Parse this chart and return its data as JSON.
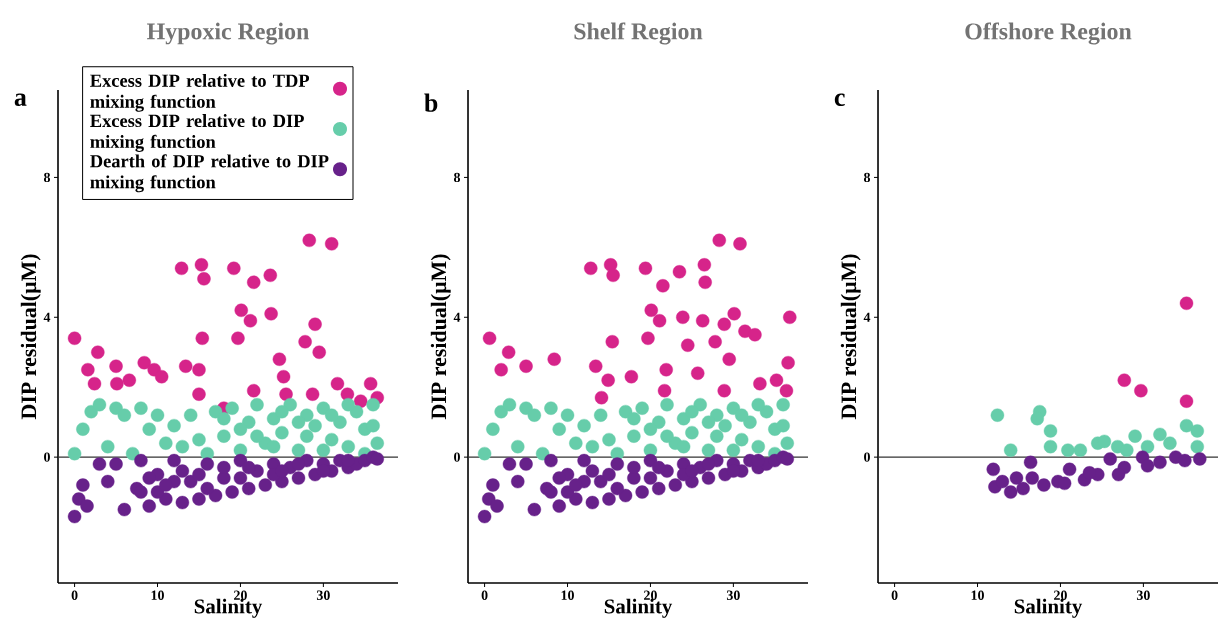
{
  "chart_data": [
    {
      "type": "scatter",
      "title": "Hypoxic Region",
      "xlabel": "Salinity",
      "ylabel": "DIP residual(μM)",
      "annotations": [
        "a"
      ],
      "xlim": [
        -2,
        39
      ],
      "ylim": [
        -3.6,
        10.5
      ],
      "xticks": [
        0,
        10,
        20,
        30
      ],
      "yticks": [
        0,
        4,
        8
      ],
      "marker": "circle",
      "legend": "top left",
      "ref_lines": [
        {
          "axis": "y",
          "value": 0,
          "color": "#333333"
        }
      ],
      "series": [
        {
          "name": "Excess DIP relative to TDP mixing function",
          "color": "#d6248a",
          "x": [
            0,
            1.6,
            2.8,
            2.4,
            5,
            5.1,
            6.6,
            8.4,
            9.6,
            10.5,
            12.9,
            15.3,
            15.6,
            13.4,
            15.4,
            15,
            19.2,
            21.6,
            23.6,
            20.1,
            21.2,
            19.7,
            23.7,
            24.7,
            25.2,
            28.3,
            31,
            29,
            29.5,
            27.8,
            25.5,
            31.7,
            35.7,
            36.5,
            32.9,
            21.6,
            18,
            15,
            28.7,
            34.5
          ],
          "values": [
            3.4,
            2.5,
            3.0,
            2.1,
            2.6,
            2.1,
            2.2,
            2.7,
            2.5,
            2.3,
            5.4,
            5.5,
            5.1,
            2.6,
            3.4,
            2.5,
            5.4,
            5.0,
            5.2,
            4.2,
            3.9,
            3.4,
            4.1,
            2.8,
            2.3,
            6.2,
            6.1,
            3.8,
            3.0,
            3.3,
            1.8,
            2.1,
            2.1,
            1.7,
            1.8,
            1.9,
            1.4,
            1.8,
            1.8,
            1.6
          ]
        },
        {
          "name": "Excess DIP relative to DIP mixing function",
          "color": "#66cdaa",
          "x": [
            0,
            1,
            2,
            3,
            4,
            5,
            6,
            7,
            8,
            9,
            10,
            11,
            12,
            13,
            14,
            15,
            16,
            17,
            18,
            19,
            20,
            21,
            22,
            23,
            24,
            25,
            26,
            27,
            28,
            29,
            30,
            31,
            32,
            33,
            34,
            35,
            36,
            36.5,
            20,
            25,
            30,
            33,
            18,
            28,
            35,
            22,
            27,
            31,
            36,
            24
          ],
          "values": [
            0.1,
            0.8,
            1.3,
            1.5,
            0.3,
            1.4,
            1.2,
            0.1,
            1.4,
            0.8,
            1.2,
            0.4,
            0.9,
            0.3,
            1.2,
            0.5,
            0.1,
            1.3,
            0.6,
            1.4,
            0.2,
            1.0,
            1.5,
            0.4,
            1.1,
            0.7,
            1.5,
            0.2,
            1.2,
            0.9,
            1.4,
            0.5,
            1.0,
            0.3,
            1.3,
            0.8,
            1.5,
            0.4,
            0.8,
            1.3,
            0.2,
            1.5,
            1.1,
            0.6,
            0.1,
            0.6,
            1.0,
            1.2,
            0.9,
            0.3
          ]
        },
        {
          "name": "Dearth of DIP relative to DIP mixing function",
          "color": "#67218a",
          "x": [
            0,
            0.5,
            1,
            1.5,
            3,
            4,
            5,
            6,
            7.5,
            8,
            8,
            9,
            10,
            11,
            12,
            13,
            14,
            15,
            16,
            17,
            18,
            19,
            20,
            21,
            22,
            23,
            24,
            25,
            26,
            27,
            28,
            29,
            30,
            31,
            32,
            33,
            34,
            35,
            36,
            12,
            18,
            24,
            30,
            15,
            21,
            27,
            10,
            13,
            9,
            11,
            16,
            20,
            25,
            33,
            36.5
          ],
          "values": [
            -1.7,
            -1.2,
            -0.8,
            -1.4,
            -0.2,
            -0.7,
            -0.2,
            -1.5,
            -0.9,
            -0.1,
            -1.0,
            -1.4,
            -0.5,
            -1.2,
            -0.1,
            -1.3,
            -0.7,
            -1.2,
            -0.2,
            -1.1,
            -0.6,
            -1.0,
            -0.1,
            -0.9,
            -0.4,
            -0.8,
            -0.2,
            -0.7,
            -0.3,
            -0.6,
            -0.1,
            -0.5,
            -0.2,
            -0.4,
            -0.1,
            -0.3,
            -0.2,
            -0.1,
            0,
            -0.7,
            -0.3,
            -0.5,
            -0.4,
            -0.5,
            -0.3,
            -0.2,
            -1.0,
            -0.4,
            -0.6,
            -0.8,
            -0.9,
            -0.6,
            -0.4,
            -0.1,
            -0.05
          ]
        }
      ]
    },
    {
      "type": "scatter",
      "title": "Shelf Region",
      "xlabel": "Salinity",
      "ylabel": "DIP residual(μM)",
      "annotations": [
        "b"
      ],
      "xlim": [
        -2,
        39
      ],
      "ylim": [
        -3.6,
        10.5
      ],
      "xticks": [
        0,
        10,
        20,
        30
      ],
      "yticks": [
        0,
        4,
        8
      ],
      "marker": "circle",
      "ref_lines": [
        {
          "axis": "y",
          "value": 0,
          "color": "#333333"
        }
      ],
      "series": [
        {
          "color": "#d6248a",
          "x": [
            0.6,
            2.9,
            2,
            5,
            8.4,
            12.8,
            15.2,
            15.5,
            19.4,
            21.5,
            23.5,
            26.5,
            26.6,
            28.3,
            30.8,
            36.8,
            15.4,
            20.1,
            21.1,
            23.9,
            26.3,
            28.9,
            30.1,
            31.4,
            32.6,
            36.6,
            19.7,
            24.5,
            27.8,
            29.5,
            25.7,
            21.9,
            17.7,
            13.4,
            14.9,
            35.2,
            33.2,
            36.4,
            14.1,
            28.9,
            21.7
          ],
          "values": [
            3.4,
            3.0,
            2.5,
            2.6,
            2.8,
            5.4,
            5.5,
            5.2,
            5.4,
            4.9,
            5.3,
            5.5,
            5.0,
            6.2,
            6.1,
            4.0,
            3.3,
            4.2,
            3.9,
            4.0,
            3.9,
            3.8,
            4.1,
            3.6,
            3.5,
            2.7,
            3.4,
            3.2,
            3.3,
            2.8,
            2.4,
            2.5,
            2.3,
            2.6,
            2.2,
            2.2,
            2.1,
            1.9,
            1.7,
            1.9,
            1.9
          ]
        },
        {
          "color": "#66cdaa",
          "x": [
            0,
            1,
            2,
            3,
            4,
            5,
            6,
            7,
            8,
            9,
            10,
            11,
            12,
            13,
            14,
            15,
            16,
            17,
            18,
            19,
            20,
            21,
            22,
            23,
            24,
            25,
            26,
            27,
            28,
            29,
            30,
            31,
            32,
            33,
            34,
            35,
            36,
            36.5,
            20,
            25,
            30,
            33,
            18,
            28,
            35,
            22,
            27,
            31,
            36,
            24
          ],
          "values": [
            0.1,
            0.8,
            1.3,
            1.5,
            0.3,
            1.4,
            1.2,
            0.1,
            1.4,
            0.8,
            1.2,
            0.4,
            0.9,
            0.3,
            1.2,
            0.5,
            0.1,
            1.3,
            0.6,
            1.4,
            0.2,
            1.0,
            1.5,
            0.4,
            1.1,
            0.7,
            1.5,
            0.2,
            1.2,
            0.9,
            1.4,
            0.5,
            1.0,
            0.3,
            1.3,
            0.8,
            1.5,
            0.4,
            0.8,
            1.3,
            0.2,
            1.5,
            1.1,
            0.6,
            0.1,
            0.6,
            1.0,
            1.2,
            0.9,
            0.3
          ]
        },
        {
          "color": "#67218a",
          "x": [
            0,
            0.5,
            1,
            1.5,
            3,
            4,
            5,
            6,
            7.5,
            8,
            8,
            9,
            10,
            11,
            12,
            13,
            14,
            15,
            16,
            17,
            18,
            19,
            20,
            21,
            22,
            23,
            24,
            25,
            26,
            27,
            28,
            29,
            30,
            31,
            32,
            33,
            34,
            35,
            36,
            12,
            18,
            24,
            30,
            15,
            21,
            27,
            10,
            13,
            9,
            11,
            16,
            20,
            25,
            33,
            36.5
          ],
          "values": [
            -1.7,
            -1.2,
            -0.8,
            -1.4,
            -0.2,
            -0.7,
            -0.2,
            -1.5,
            -0.9,
            -0.1,
            -1.0,
            -1.4,
            -0.5,
            -1.2,
            -0.1,
            -1.3,
            -0.7,
            -1.2,
            -0.2,
            -1.1,
            -0.6,
            -1.0,
            -0.1,
            -0.9,
            -0.4,
            -0.8,
            -0.2,
            -0.7,
            -0.3,
            -0.6,
            -0.1,
            -0.5,
            -0.2,
            -0.4,
            -0.1,
            -0.3,
            -0.2,
            -0.1,
            0,
            -0.7,
            -0.3,
            -0.5,
            -0.4,
            -0.5,
            -0.3,
            -0.2,
            -1.0,
            -0.4,
            -0.6,
            -0.8,
            -0.9,
            -0.6,
            -0.4,
            -0.1,
            -0.05
          ]
        }
      ]
    },
    {
      "type": "scatter",
      "title": "Offshore Region",
      "xlabel": "Salinity",
      "ylabel": "DIP residual(μM)",
      "annotations": [
        "c"
      ],
      "xlim": [
        -2,
        39
      ],
      "ylim": [
        -3.6,
        10.5
      ],
      "xticks": [
        0,
        10,
        20,
        30
      ],
      "yticks": [
        0,
        4,
        8
      ],
      "marker": "circle",
      "ref_lines": [
        {
          "axis": "y",
          "value": 0,
          "color": "#333333"
        }
      ],
      "series": [
        {
          "color": "#d6248a",
          "x": [
            35.2,
            27.7,
            29.7,
            35.2
          ],
          "values": [
            4.4,
            2.2,
            1.9,
            1.6
          ]
        },
        {
          "color": "#66cdaa",
          "x": [
            12.4,
            17.5,
            17.2,
            18.8,
            18.8,
            14,
            20.9,
            22.4,
            24.5,
            25.3,
            29,
            32,
            35.2,
            36.5,
            33.2,
            26.9,
            36.5,
            30.5,
            28
          ],
          "values": [
            1.2,
            1.3,
            1.1,
            0.75,
            0.3,
            0.2,
            0.2,
            0.2,
            0.4,
            0.45,
            0.6,
            0.65,
            0.9,
            0.75,
            0.4,
            0.3,
            0.3,
            0.3,
            0.2
          ]
        },
        {
          "color": "#67218a",
          "x": [
            11.9,
            12.1,
            14,
            16.4,
            16.6,
            19.7,
            21.1,
            22.9,
            24.5,
            26,
            27.7,
            29.9,
            32,
            33.9,
            36.8,
            27,
            14.7,
            18,
            20.5,
            13,
            15.5,
            23.5,
            30.5,
            35
          ],
          "values": [
            -0.35,
            -0.85,
            -1.0,
            -0.15,
            -0.6,
            -0.7,
            -0.35,
            -0.65,
            -0.5,
            -0.05,
            -0.3,
            0,
            -0.15,
            0,
            -0.05,
            -0.5,
            -0.6,
            -0.8,
            -0.75,
            -0.7,
            -0.9,
            -0.45,
            -0.25,
            -0.1
          ]
        }
      ]
    }
  ]
}
